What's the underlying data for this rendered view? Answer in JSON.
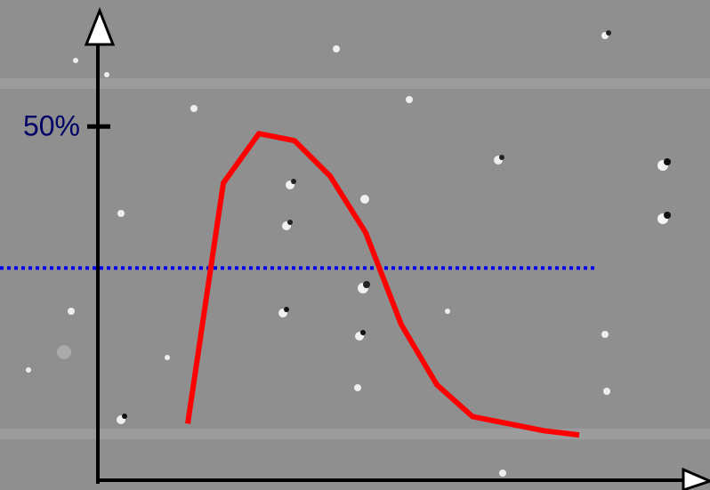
{
  "chart_data": {
    "type": "line",
    "categories": [
      null,
      null,
      null,
      null,
      null,
      null,
      null,
      null,
      null,
      null,
      null,
      null
    ],
    "values": [
      8,
      42,
      49,
      48,
      43,
      35,
      22,
      13.5,
      9,
      8,
      7,
      6.4
    ],
    "color": "#ff0000",
    "ylim": [
      0,
      66
    ],
    "yticks": [
      {
        "value": 50,
        "label": "50%"
      }
    ],
    "hline": {
      "value": 30,
      "color": "#0000ee"
    }
  }
}
